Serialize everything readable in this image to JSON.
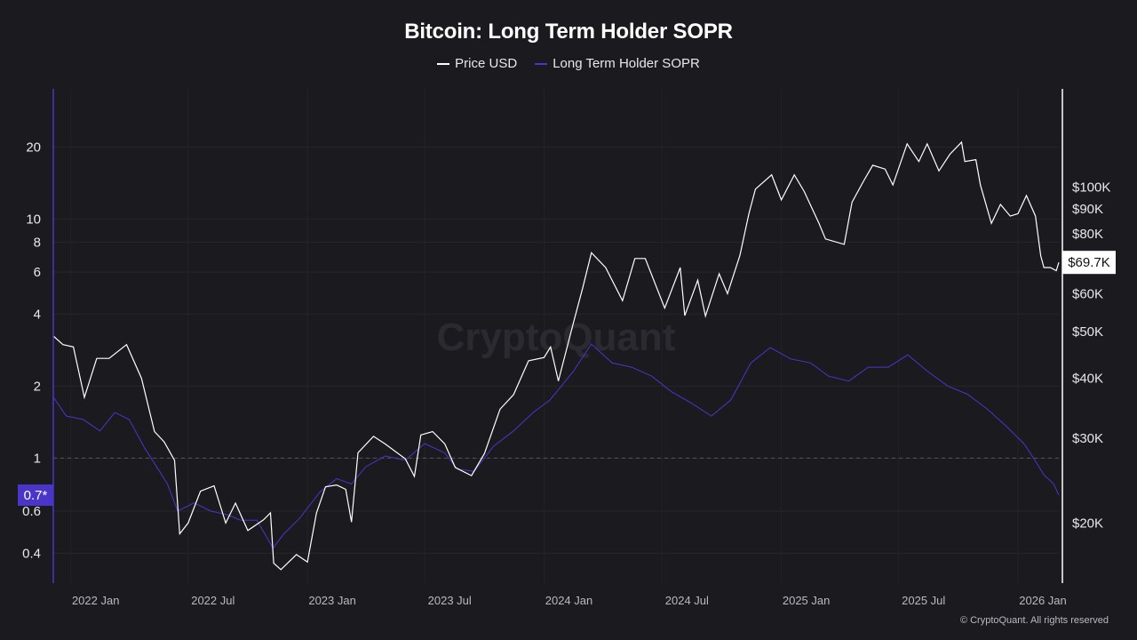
{
  "chart_data": {
    "type": "line",
    "title": "Bitcoin: Long Term Holder SOPR",
    "legend": {
      "placement": "top-center",
      "items": [
        {
          "name": "Price USD",
          "color": "#ffffff"
        },
        {
          "name": "Long Term Holder SOPR",
          "color": "#4a35c9"
        }
      ]
    },
    "x_axis": {
      "type": "date",
      "range": [
        "2021-12-05",
        "2026-03-05"
      ],
      "ticks": [
        {
          "date": "2022-01-01",
          "label": "2022 Jan"
        },
        {
          "date": "2022-07-01",
          "label": "2022 Jul"
        },
        {
          "date": "2023-01-01",
          "label": "2023 Jan"
        },
        {
          "date": "2023-07-01",
          "label": "2023 Jul"
        },
        {
          "date": "2024-01-01",
          "label": "2024 Jan"
        },
        {
          "date": "2024-07-01",
          "label": "2024 Jul"
        },
        {
          "date": "2025-01-01",
          "label": "2025 Jan"
        },
        {
          "date": "2025-07-01",
          "label": "2025 Jul"
        },
        {
          "date": "2026-01-01",
          "label": "2026 Jan"
        }
      ]
    },
    "y_left": {
      "scale": "log",
      "range": [
        0.3,
        35
      ],
      "ticks": [
        {
          "value": 20,
          "label": "20"
        },
        {
          "value": 10,
          "label": "10"
        },
        {
          "value": 8,
          "label": "8"
        },
        {
          "value": 6,
          "label": "6"
        },
        {
          "value": 4,
          "label": "4"
        },
        {
          "value": 2,
          "label": "2"
        },
        {
          "value": 1,
          "label": "1"
        },
        {
          "value": 0.6,
          "label": "0.6"
        },
        {
          "value": 0.4,
          "label": "0.4"
        }
      ],
      "reference_line": 1,
      "current_marker": {
        "value": 0.7,
        "label": "0.7*"
      }
    },
    "y_right": {
      "scale": "log",
      "range": [
        15000,
        160000
      ],
      "ticks": [
        {
          "value": 100000,
          "label": "$100K"
        },
        {
          "value": 90000,
          "label": "$90K"
        },
        {
          "value": 80000,
          "label": "$80K"
        },
        {
          "value": 60000,
          "label": "$60K"
        },
        {
          "value": 50000,
          "label": "$50K"
        },
        {
          "value": 40000,
          "label": "$40K"
        },
        {
          "value": 30000,
          "label": "$30K"
        },
        {
          "value": 20000,
          "label": "$20K"
        }
      ],
      "current_marker": {
        "value": 69700,
        "label": "$69.7K"
      }
    },
    "grid": true,
    "watermark": "CryptoQuant",
    "series": [
      {
        "name": "Price USD",
        "axis": "right",
        "color": "#ffffff",
        "x": [
          "2021-12-05",
          "2021-12-20",
          "2022-01-05",
          "2022-01-22",
          "2022-02-10",
          "2022-03-01",
          "2022-03-28",
          "2022-04-20",
          "2022-05-10",
          "2022-05-25",
          "2022-06-10",
          "2022-06-18",
          "2022-07-01",
          "2022-07-20",
          "2022-08-10",
          "2022-08-28",
          "2022-09-12",
          "2022-10-01",
          "2022-10-25",
          "2022-11-05",
          "2022-11-10",
          "2022-11-21",
          "2022-12-15",
          "2023-01-01",
          "2023-01-15",
          "2023-01-29",
          "2023-02-15",
          "2023-03-01",
          "2023-03-10",
          "2023-03-20",
          "2023-04-13",
          "2023-05-01",
          "2023-06-01",
          "2023-06-15",
          "2023-06-25",
          "2023-07-13",
          "2023-08-01",
          "2023-08-17",
          "2023-09-11",
          "2023-10-01",
          "2023-10-25",
          "2023-11-15",
          "2023-12-08",
          "2024-01-01",
          "2024-01-11",
          "2024-01-23",
          "2024-02-15",
          "2024-03-01",
          "2024-03-14",
          "2024-04-05",
          "2024-05-01",
          "2024-05-20",
          "2024-06-05",
          "2024-07-05",
          "2024-07-29",
          "2024-08-05",
          "2024-08-25",
          "2024-09-06",
          "2024-09-27",
          "2024-10-10",
          "2024-10-29",
          "2024-11-12",
          "2024-11-22",
          "2024-12-17",
          "2025-01-01",
          "2025-01-21",
          "2025-02-05",
          "2025-02-28",
          "2025-03-10",
          "2025-04-08",
          "2025-04-20",
          "2025-05-08",
          "2025-05-22",
          "2025-06-10",
          "2025-06-22",
          "2025-07-14",
          "2025-08-01",
          "2025-08-14",
          "2025-09-01",
          "2025-09-18",
          "2025-10-06",
          "2025-10-11",
          "2025-10-28",
          "2025-11-04",
          "2025-11-21",
          "2025-12-05",
          "2025-12-20",
          "2026-01-01",
          "2026-01-14",
          "2026-01-28",
          "2026-02-05",
          "2026-02-10",
          "2026-02-20",
          "2026-03-01",
          "2026-03-05"
        ],
        "values": [
          49000,
          47000,
          46500,
          36500,
          44000,
          44000,
          47000,
          40000,
          31000,
          29500,
          27000,
          19000,
          20000,
          23300,
          23900,
          20000,
          22000,
          19300,
          20300,
          21000,
          16500,
          16000,
          17200,
          16600,
          21000,
          23800,
          24000,
          23500,
          20100,
          28000,
          30300,
          29200,
          27200,
          25000,
          30500,
          31000,
          29200,
          26100,
          25100,
          27900,
          34500,
          37000,
          43500,
          44200,
          46500,
          39500,
          52000,
          62000,
          73000,
          68000,
          58000,
          71000,
          71000,
          56000,
          68000,
          54000,
          64000,
          53900,
          66000,
          60000,
          72000,
          88000,
          99000,
          106000,
          94000,
          106000,
          98000,
          84000,
          78000,
          76000,
          93000,
          103000,
          111000,
          109000,
          101000,
          123000,
          113000,
          123000,
          108000,
          117000,
          124000,
          113000,
          114000,
          101000,
          84000,
          92000,
          87000,
          88000,
          96000,
          87000,
          72000,
          68000,
          68000,
          67000,
          69700
        ]
      },
      {
        "name": "Long Term Holder SOPR",
        "axis": "left",
        "color": "#4a35c9",
        "x": [
          "2021-12-05",
          "2021-12-25",
          "2022-01-20",
          "2022-02-15",
          "2022-03-10",
          "2022-04-01",
          "2022-04-25",
          "2022-05-10",
          "2022-05-30",
          "2022-06-15",
          "2022-07-10",
          "2022-08-05",
          "2022-08-30",
          "2022-09-20",
          "2022-10-15",
          "2022-11-09",
          "2022-11-25",
          "2022-12-20",
          "2023-01-20",
          "2023-02-15",
          "2023-03-10",
          "2023-04-01",
          "2023-05-01",
          "2023-06-01",
          "2023-07-01",
          "2023-08-01",
          "2023-08-20",
          "2023-09-15",
          "2023-10-15",
          "2023-11-15",
          "2023-12-15",
          "2024-01-10",
          "2024-02-15",
          "2024-03-14",
          "2024-04-15",
          "2024-05-15",
          "2024-06-15",
          "2024-07-15",
          "2024-08-15",
          "2024-09-15",
          "2024-10-15",
          "2024-11-15",
          "2024-12-15",
          "2025-01-15",
          "2025-02-15",
          "2025-03-15",
          "2025-04-15",
          "2025-05-15",
          "2025-06-15",
          "2025-07-15",
          "2025-08-15",
          "2025-09-15",
          "2025-10-15",
          "2025-11-15",
          "2025-12-15",
          "2026-01-10",
          "2026-01-25",
          "2026-02-10",
          "2026-02-25",
          "2026-03-05"
        ],
        "values": [
          1.8,
          1.5,
          1.45,
          1.3,
          1.55,
          1.45,
          1.1,
          0.95,
          0.78,
          0.6,
          0.65,
          0.6,
          0.58,
          0.55,
          0.55,
          0.42,
          0.48,
          0.56,
          0.72,
          0.82,
          0.78,
          0.92,
          1.02,
          0.98,
          1.15,
          1.05,
          0.9,
          0.88,
          1.12,
          1.3,
          1.55,
          1.75,
          2.3,
          3.0,
          2.5,
          2.4,
          2.2,
          1.9,
          1.7,
          1.5,
          1.75,
          2.5,
          2.9,
          2.6,
          2.5,
          2.2,
          2.1,
          2.4,
          2.4,
          2.7,
          2.3,
          2.0,
          1.85,
          1.6,
          1.35,
          1.15,
          1.0,
          0.85,
          0.78,
          0.7
        ]
      }
    ]
  },
  "copyright": "© CryptoQuant. All rights reserved"
}
